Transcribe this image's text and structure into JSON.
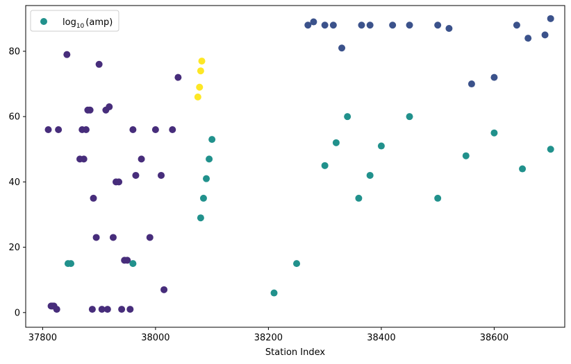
{
  "chart_data": {
    "type": "scatter",
    "title": "",
    "xlabel": "Station Index",
    "ylabel": "",
    "xlim": [
      37770,
      38725
    ],
    "ylim": [
      -4.5,
      94
    ],
    "xticks": [
      37800,
      38000,
      38200,
      38400,
      38600
    ],
    "yticks": [
      0,
      20,
      40,
      60,
      80
    ],
    "legend": {
      "label_prefix": "log",
      "label_sub": "10",
      "label_suffix": "(amp)",
      "placement": "top-left",
      "marker_color": "#21918c"
    },
    "colormap": "viridis",
    "grid": false,
    "point_groups": [
      {
        "color": "#472d7b",
        "x": [
          37810,
          37815,
          37817,
          37820,
          37825,
          37828,
          37843,
          37866,
          37870,
          37873,
          37877,
          37880,
          37884,
          37888,
          37890,
          37895,
          37900,
          37905,
          37912,
          37915,
          37918,
          37925,
          37930,
          37935,
          37940,
          37945,
          37950,
          37955,
          37960,
          37965,
          37975,
          37990,
          38000,
          38010,
          38015,
          38030,
          38040
        ],
        "y": [
          56,
          2,
          2,
          2,
          1,
          56,
          79,
          47,
          56,
          47,
          56,
          62,
          62,
          1,
          35,
          23,
          76,
          1,
          62,
          1,
          63,
          23,
          40,
          40,
          1,
          16,
          16,
          1,
          56,
          42,
          47,
          23,
          56,
          42,
          7,
          56,
          72
        ]
      },
      {
        "color": "#3b528b",
        "x": [
          38270,
          38280,
          38300,
          38315,
          38330,
          38365,
          38380,
          38420,
          38450,
          38500,
          38520,
          38560,
          38600,
          38640,
          38660,
          38690,
          38700
        ],
        "y": [
          88,
          89,
          88,
          88,
          81,
          88,
          88,
          88,
          88,
          88,
          87,
          70,
          72,
          88,
          84,
          85,
          90
        ]
      },
      {
        "color": "#21918c",
        "x": [
          37845,
          37850,
          37960,
          38080,
          38085,
          38090,
          38095,
          38100,
          38210,
          38250,
          38300,
          38320,
          38340,
          38360,
          38380,
          38400,
          38450,
          38500,
          38550,
          38600,
          38650,
          38700
        ],
        "y": [
          15,
          15,
          15,
          29,
          35,
          41,
          47,
          53,
          6,
          15,
          45,
          52,
          60,
          35,
          42,
          51,
          60,
          35,
          48,
          55,
          44,
          50
        ]
      },
      {
        "color": "#fde725",
        "x": [
          38075,
          38078,
          38080,
          38082
        ],
        "y": [
          66,
          69,
          74,
          77
        ]
      }
    ]
  }
}
